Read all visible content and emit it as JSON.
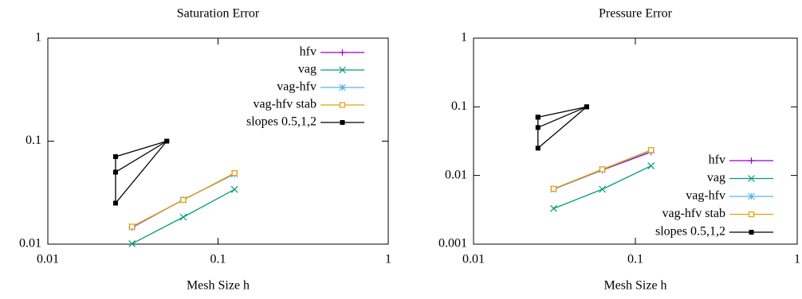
{
  "chart_data": [
    {
      "type": "line",
      "title": "Saturation Error",
      "xlabel": "Mesh Size h",
      "xlog": true,
      "ylog": true,
      "xlim": [
        0.01,
        1
      ],
      "ylim": [
        0.01,
        1
      ],
      "xticks": [
        0.01,
        0.1,
        1
      ],
      "yticks": [
        0.01,
        0.1,
        1
      ],
      "legend": "top right",
      "series": [
        {
          "name": "hfv",
          "color": "#9400d3",
          "marker": "plus",
          "x": [
            0.03125,
            0.0625,
            0.125
          ],
          "values": [
            0.0145,
            0.027,
            0.048
          ]
        },
        {
          "name": "vag",
          "color": "#009e73",
          "marker": "cross",
          "x": [
            0.03125,
            0.0625,
            0.125
          ],
          "values": [
            0.0101,
            0.0183,
            0.034
          ]
        },
        {
          "name": "vag-hfv",
          "color": "#56b4e9",
          "marker": "star",
          "x": [
            0.03125,
            0.0625,
            0.125
          ],
          "values": [
            0.0147,
            0.027,
            0.048
          ]
        },
        {
          "name": "vag-hfv stab",
          "color": "#e69f00",
          "marker": "open-square",
          "x": [
            0.03125,
            0.0625,
            0.125
          ],
          "values": [
            0.0148,
            0.0268,
            0.049
          ]
        },
        {
          "name": "slopes 0.5,1,2",
          "color": "#000000",
          "marker": "square",
          "x": [
            0.025,
            0.05,
            0.025,
            0.05,
            0.025,
            0.025
          ],
          "values": [
            0.0707,
            0.1,
            0.05,
            0.1,
            0.025,
            0.0707
          ]
        }
      ]
    },
    {
      "type": "line",
      "title": "Pressure Error",
      "xlabel": "Mesh Size h",
      "xlog": true,
      "ylog": true,
      "xlim": [
        0.01,
        1
      ],
      "ylim": [
        0.001,
        1
      ],
      "xticks": [
        0.01,
        0.1,
        1
      ],
      "yticks": [
        0.001,
        0.01,
        0.1,
        1
      ],
      "legend": "bottom right",
      "series": [
        {
          "name": "hfv",
          "color": "#9400d3",
          "marker": "plus",
          "x": [
            0.03125,
            0.0625,
            0.125
          ],
          "values": [
            0.0063,
            0.012,
            0.022
          ]
        },
        {
          "name": "vag",
          "color": "#009e73",
          "marker": "cross",
          "x": [
            0.03125,
            0.0625,
            0.125
          ],
          "values": [
            0.0033,
            0.0063,
            0.0138
          ]
        },
        {
          "name": "vag-hfv",
          "color": "#56b4e9",
          "marker": "star",
          "x": [
            0.03125,
            0.0625,
            0.125
          ],
          "values": [
            0.0063,
            0.0122,
            0.023
          ]
        },
        {
          "name": "vag-hfv stab",
          "color": "#e69f00",
          "marker": "open-square",
          "x": [
            0.03125,
            0.0625,
            0.125
          ],
          "values": [
            0.0064,
            0.0123,
            0.0235
          ]
        },
        {
          "name": "slopes 0.5,1,2",
          "color": "#000000",
          "marker": "square",
          "x": [
            0.025,
            0.05,
            0.025,
            0.05,
            0.025,
            0.025
          ],
          "values": [
            0.0707,
            0.1,
            0.05,
            0.1,
            0.025,
            0.0707
          ]
        }
      ]
    }
  ]
}
